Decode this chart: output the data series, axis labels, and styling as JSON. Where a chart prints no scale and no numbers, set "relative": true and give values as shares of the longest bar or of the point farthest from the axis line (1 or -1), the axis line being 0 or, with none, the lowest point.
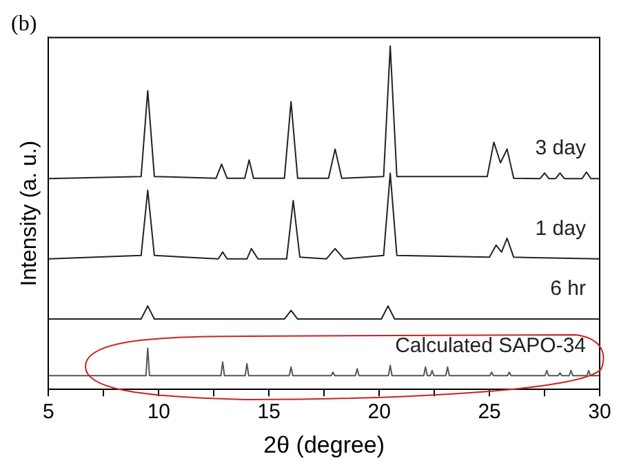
{
  "chart_data": {
    "type": "line",
    "title": "(b)",
    "xlabel": "2θ (degree)",
    "ylabel": "Intensity (a. u.)",
    "relative": true,
    "xlim": [
      5,
      30
    ],
    "xticks": [
      5,
      {
        "value": 7.5,
        "label": null
      },
      10,
      {
        "value": 12.5,
        "label": null
      },
      15,
      {
        "value": 17.5,
        "label": null
      },
      20,
      {
        "value": 22.5,
        "label": null
      },
      25,
      {
        "value": 27.5,
        "label": null
      },
      30
    ],
    "grid": false,
    "legend": false,
    "marker": "none",
    "line_style": "solid",
    "series": [
      {
        "name": "3 day",
        "color": "#222222",
        "x": [
          5,
          9.2,
          9.5,
          9.8,
          12.6,
          12.85,
          13.1,
          13.9,
          14.1,
          14.3,
          15.7,
          16.0,
          16.3,
          17.7,
          18.0,
          18.3,
          20.2,
          20.5,
          20.8,
          24.9,
          25.2,
          25.5,
          25.8,
          26.1,
          27.3,
          27.5,
          27.7,
          28.0,
          28.2,
          28.4,
          29.2,
          29.4,
          29.6,
          30
        ],
        "values": [
          0.614,
          0.62,
          0.87,
          0.62,
          0.615,
          0.656,
          0.615,
          0.615,
          0.668,
          0.615,
          0.615,
          0.838,
          0.615,
          0.615,
          0.7,
          0.615,
          0.62,
          1.0,
          0.62,
          0.62,
          0.72,
          0.66,
          0.7,
          0.615,
          0.614,
          0.63,
          0.614,
          0.614,
          0.63,
          0.614,
          0.614,
          0.633,
          0.614,
          0.614
        ]
      },
      {
        "name": "1 day",
        "color": "#222222",
        "x": [
          5,
          9.2,
          9.5,
          9.8,
          12.7,
          12.9,
          13.1,
          14.0,
          14.2,
          14.5,
          15.8,
          16.1,
          16.4,
          17.6,
          18.0,
          18.4,
          20.2,
          20.5,
          20.8,
          25.0,
          25.3,
          25.55,
          25.8,
          26.1,
          30
        ],
        "values": [
          0.38,
          0.39,
          0.58,
          0.39,
          0.38,
          0.4,
          0.38,
          0.38,
          0.41,
          0.38,
          0.38,
          0.55,
          0.385,
          0.38,
          0.41,
          0.38,
          0.39,
          0.63,
          0.39,
          0.385,
          0.42,
          0.4,
          0.44,
          0.385,
          0.38
        ]
      },
      {
        "name": "6 hr",
        "color": "#222222",
        "x": [
          5,
          9.2,
          9.5,
          9.8,
          15.7,
          16.0,
          16.3,
          20.1,
          20.4,
          20.7,
          30
        ],
        "values": [
          0.205,
          0.205,
          0.243,
          0.205,
          0.205,
          0.23,
          0.205,
          0.205,
          0.243,
          0.205,
          0.205
        ]
      },
      {
        "name": "Calculated SAPO-34",
        "color": "#555555",
        "x": [
          5,
          9.42,
          9.5,
          9.58,
          12.82,
          12.9,
          12.98,
          13.92,
          14.0,
          14.08,
          15.92,
          16.0,
          16.08,
          17.82,
          17.9,
          17.98,
          18.92,
          19.0,
          19.08,
          20.42,
          20.5,
          20.58,
          22.02,
          22.1,
          22.18,
          22.32,
          22.4,
          22.48,
          23.02,
          23.1,
          23.18,
          25.02,
          25.1,
          25.18,
          25.82,
          25.9,
          25.98,
          27.52,
          27.6,
          27.68,
          28.12,
          28.2,
          28.28,
          28.62,
          28.7,
          28.78,
          29.42,
          29.5,
          29.58,
          30
        ],
        "values": [
          0.04,
          0.04,
          0.12,
          0.04,
          0.04,
          0.08,
          0.04,
          0.04,
          0.075,
          0.04,
          0.04,
          0.065,
          0.04,
          0.04,
          0.05,
          0.04,
          0.04,
          0.06,
          0.04,
          0.04,
          0.07,
          0.04,
          0.04,
          0.065,
          0.04,
          0.04,
          0.055,
          0.04,
          0.04,
          0.065,
          0.04,
          0.04,
          0.05,
          0.04,
          0.04,
          0.05,
          0.04,
          0.04,
          0.055,
          0.04,
          0.04,
          0.048,
          0.04,
          0.04,
          0.055,
          0.04,
          0.04,
          0.055,
          0.04,
          0.04
        ]
      }
    ]
  }
}
